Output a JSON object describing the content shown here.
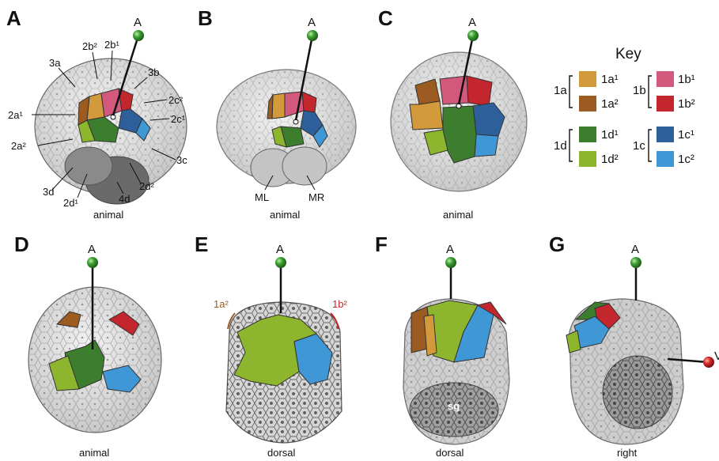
{
  "panels": {
    "A": {
      "letter": "A",
      "axis": "A",
      "view": "animal",
      "labels": {
        "b2": "2b²",
        "b1": "2b¹",
        "a3": "3a",
        "b3": "3b",
        "c2": "2c²",
        "a1": "2a¹",
        "c1": "2c¹",
        "a2": "2a²",
        "c3": "3c",
        "d3": "3d",
        "d2": "2d²",
        "d1": "2d¹",
        "d4": "4d"
      }
    },
    "B": {
      "letter": "B",
      "axis": "A",
      "view": "animal",
      "ml": "ML",
      "mr": "MR"
    },
    "C": {
      "letter": "C",
      "axis": "A",
      "view": "animal"
    },
    "D": {
      "letter": "D",
      "axis": "A",
      "view": "animal"
    },
    "E": {
      "letter": "E",
      "axis": "A",
      "view": "dorsal",
      "left_label": "1a²",
      "right_label": "1b²"
    },
    "F": {
      "letter": "F",
      "axis": "A",
      "view": "dorsal",
      "sg": "sg"
    },
    "G": {
      "letter": "G",
      "axis": "A",
      "view": "right",
      "v_label": "V"
    }
  },
  "key": {
    "title": "Key",
    "groups": [
      {
        "name": "1a",
        "items": [
          {
            "label": "1a¹",
            "color": "#d39a3c"
          },
          {
            "label": "1a²",
            "color": "#9b5b21"
          }
        ]
      },
      {
        "name": "1b",
        "items": [
          {
            "label": "1b¹",
            "color": "#d2587c"
          },
          {
            "label": "1b²",
            "color": "#c3262d"
          }
        ]
      },
      {
        "name": "1d",
        "items": [
          {
            "label": "1d¹",
            "color": "#3c7d2e"
          },
          {
            "label": "1d²",
            "color": "#8db52d"
          }
        ]
      },
      {
        "name": "1c",
        "items": [
          {
            "label": "1c¹",
            "color": "#2d5f9b"
          },
          {
            "label": "1c²",
            "color": "#3f97d6"
          }
        ]
      }
    ]
  },
  "colors": {
    "axis_ball": "#3fa034",
    "ventral_ball": "#d42a2a",
    "cell_fill": "#d8d8d8",
    "cell_line": "#555555"
  }
}
